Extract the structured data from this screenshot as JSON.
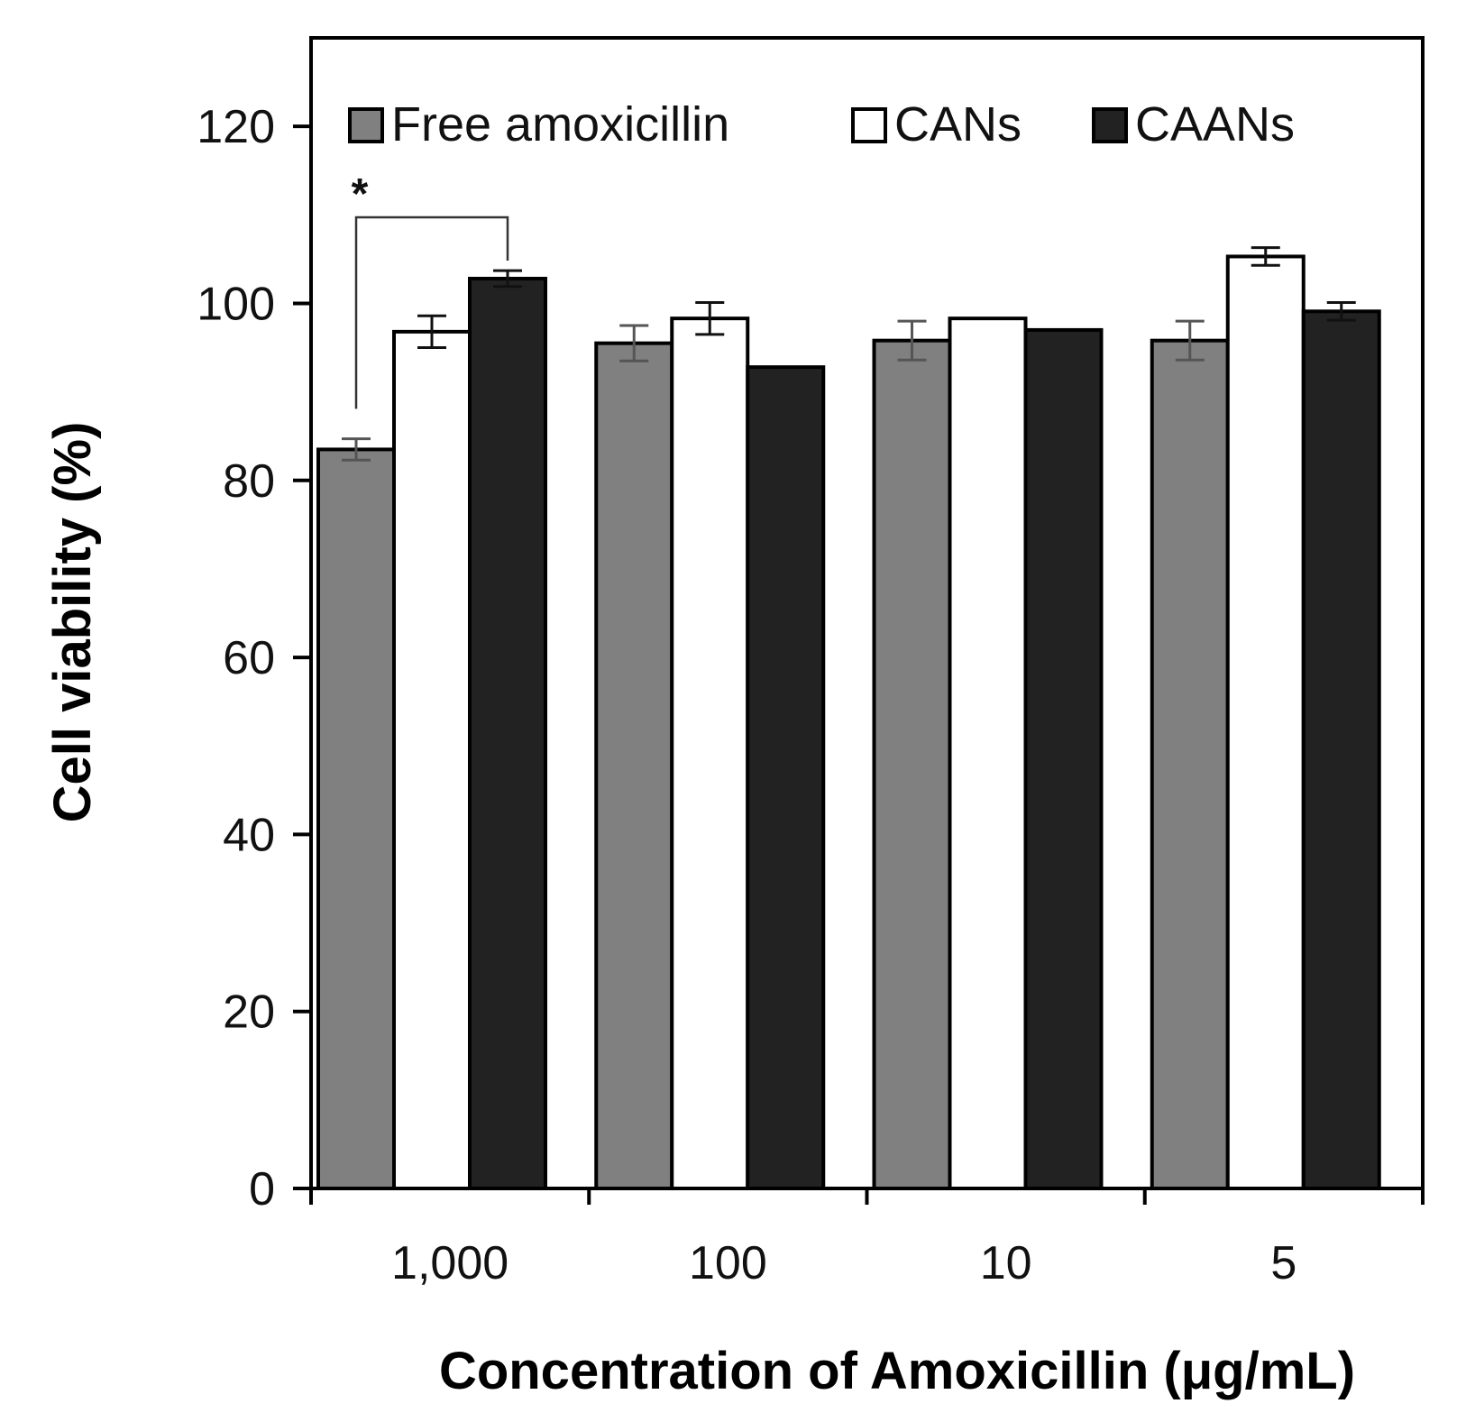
{
  "chart_data": {
    "type": "bar",
    "title": "",
    "xlabel": "Concentration of Amoxicillin (μg/mL)",
    "ylabel": "Cell viability (%)",
    "ylim": [
      0,
      130
    ],
    "yticks": [
      0,
      20,
      40,
      60,
      80,
      100,
      120
    ],
    "ytick_labels": [
      "0",
      "20",
      "40",
      "60",
      "80",
      "100",
      "120"
    ],
    "categories": [
      "1,000",
      "100",
      "10",
      "5"
    ],
    "grid": false,
    "legend_position": "top",
    "series": [
      {
        "name": "Free amoxicillin",
        "color": "#808080",
        "values": [
          83.5,
          95.5,
          95.8,
          95.8
        ],
        "errors": [
          1.2,
          2.0,
          2.2,
          2.2
        ]
      },
      {
        "name": "CANs",
        "color": "#ffffff",
        "values": [
          96.8,
          98.3,
          98.3,
          105.3
        ],
        "errors": [
          1.8,
          1.8,
          0.0,
          1.0
        ]
      },
      {
        "name": "CAANs",
        "color": "#222222",
        "values": [
          102.8,
          92.8,
          97.0,
          99.1
        ],
        "errors": [
          0.9,
          0.0,
          0.0,
          1.0
        ]
      }
    ],
    "annotations": [
      {
        "text": "*",
        "from_category": "1,000",
        "from_series": "Free amoxicillin",
        "to_category": "1,000",
        "to_series": "CAANs"
      }
    ]
  }
}
